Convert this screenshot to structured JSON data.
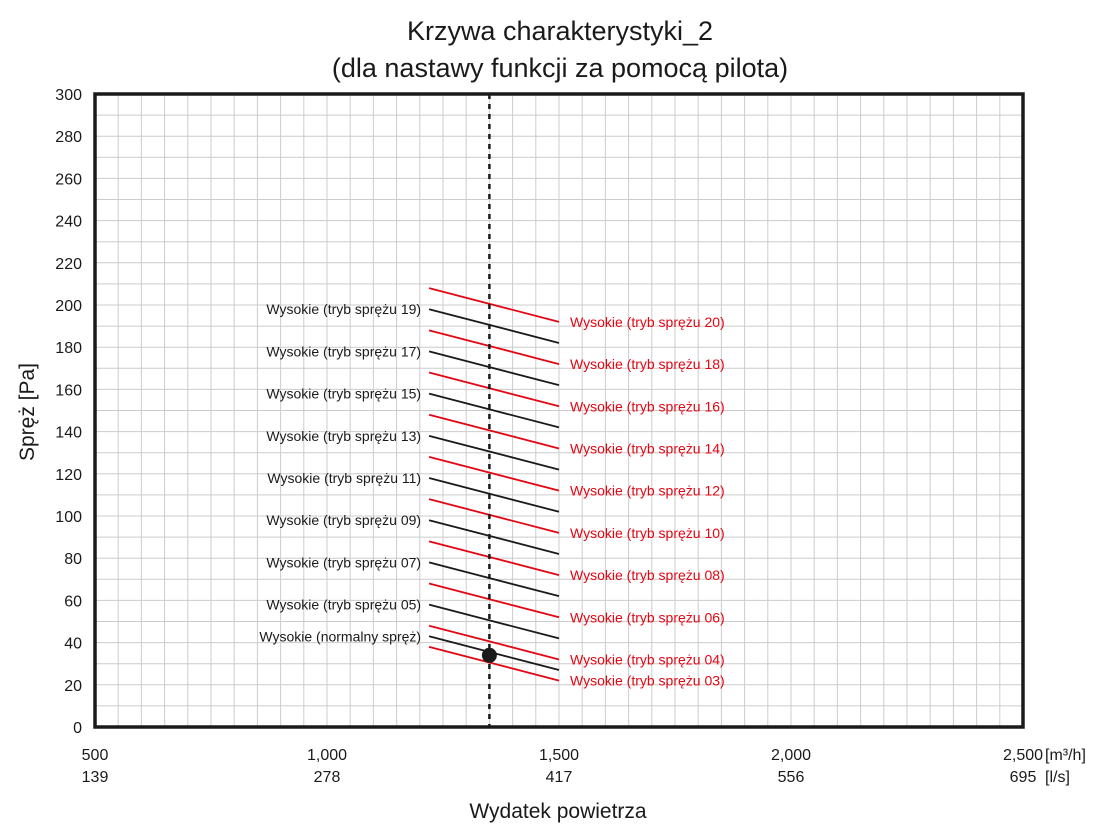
{
  "chart_data": {
    "type": "line",
    "title_line1": "Krzywa charakterystyki_2",
    "title_line2": "(dla nastawy funkcji za pomocą pilota)",
    "xlabel": "Wydatek powietrza",
    "ylabel": "Spręż [Pa]",
    "x_unit_primary": "[m³/h]",
    "x_unit_secondary": "[l/s]",
    "xlim": [
      500,
      2500
    ],
    "ylim": [
      0,
      300
    ],
    "grid": true,
    "x_ticks_primary": [
      {
        "value": 500,
        "label": "500"
      },
      {
        "value": 1000,
        "label": "1,000"
      },
      {
        "value": 1500,
        "label": "1,500"
      },
      {
        "value": 2000,
        "label": "2,000"
      },
      {
        "value": 2500,
        "label": "2,500"
      }
    ],
    "x_ticks_secondary": [
      "139",
      "278",
      "417",
      "556",
      "695"
    ],
    "y_ticks": [
      0,
      20,
      40,
      60,
      80,
      100,
      120,
      140,
      160,
      180,
      200,
      220,
      240,
      260,
      280,
      300
    ],
    "rated_airflow": 1350,
    "operating_point": {
      "x": 1350,
      "y": 34
    },
    "series": [
      {
        "name": "Wysokie (tryb sprężu 03)",
        "color": "#e30613",
        "side": "right",
        "x": [
          1220,
          1500
        ],
        "y": [
          38,
          22
        ]
      },
      {
        "name": "Wysokie (tryb sprężu 04)",
        "color": "#e30613",
        "side": "right",
        "x": [
          1220,
          1500
        ],
        "y": [
          48,
          32
        ]
      },
      {
        "name": "Wysokie (normalny spręż)",
        "color": "#1a1a1a",
        "side": "left",
        "x": [
          1220,
          1500
        ],
        "y": [
          43,
          27
        ]
      },
      {
        "name": "Wysokie (tryb sprężu 05)",
        "color": "#1a1a1a",
        "side": "left",
        "x": [
          1220,
          1500
        ],
        "y": [
          58,
          42
        ]
      },
      {
        "name": "Wysokie (tryb sprężu 06)",
        "color": "#e30613",
        "side": "right",
        "x": [
          1220,
          1500
        ],
        "y": [
          68,
          52
        ]
      },
      {
        "name": "Wysokie (tryb sprężu 07)",
        "color": "#1a1a1a",
        "side": "left",
        "x": [
          1220,
          1500
        ],
        "y": [
          78,
          62
        ]
      },
      {
        "name": "Wysokie (tryb sprężu 08)",
        "color": "#e30613",
        "side": "right",
        "x": [
          1220,
          1500
        ],
        "y": [
          88,
          72
        ]
      },
      {
        "name": "Wysokie (tryb sprężu 09)",
        "color": "#1a1a1a",
        "side": "left",
        "x": [
          1220,
          1500
        ],
        "y": [
          98,
          82
        ]
      },
      {
        "name": "Wysokie (tryb sprężu 10)",
        "color": "#e30613",
        "side": "right",
        "x": [
          1220,
          1500
        ],
        "y": [
          108,
          92
        ]
      },
      {
        "name": "Wysokie (tryb sprężu 11)",
        "color": "#1a1a1a",
        "side": "left",
        "x": [
          1220,
          1500
        ],
        "y": [
          118,
          102
        ]
      },
      {
        "name": "Wysokie (tryb sprężu 12)",
        "color": "#e30613",
        "side": "right",
        "x": [
          1220,
          1500
        ],
        "y": [
          128,
          112
        ]
      },
      {
        "name": "Wysokie (tryb sprężu 13)",
        "color": "#1a1a1a",
        "side": "left",
        "x": [
          1220,
          1500
        ],
        "y": [
          138,
          122
        ]
      },
      {
        "name": "Wysokie (tryb sprężu 14)",
        "color": "#e30613",
        "side": "right",
        "x": [
          1220,
          1500
        ],
        "y": [
          148,
          132
        ]
      },
      {
        "name": "Wysokie (tryb sprężu 15)",
        "color": "#1a1a1a",
        "side": "left",
        "x": [
          1220,
          1500
        ],
        "y": [
          158,
          142
        ]
      },
      {
        "name": "Wysokie (tryb sprężu 16)",
        "color": "#e30613",
        "side": "right",
        "x": [
          1220,
          1500
        ],
        "y": [
          168,
          152
        ]
      },
      {
        "name": "Wysokie (tryb sprężu 17)",
        "color": "#1a1a1a",
        "side": "left",
        "x": [
          1220,
          1500
        ],
        "y": [
          178,
          162
        ]
      },
      {
        "name": "Wysokie (tryb sprężu 18)",
        "color": "#e30613",
        "side": "right",
        "x": [
          1220,
          1500
        ],
        "y": [
          188,
          172
        ]
      },
      {
        "name": "Wysokie (tryb sprężu 19)",
        "color": "#1a1a1a",
        "side": "left",
        "x": [
          1220,
          1500
        ],
        "y": [
          198,
          182
        ]
      },
      {
        "name": "Wysokie (tryb sprężu 20)",
        "color": "#e30613",
        "side": "right",
        "x": [
          1220,
          1500
        ],
        "y": [
          208,
          192
        ]
      }
    ]
  }
}
